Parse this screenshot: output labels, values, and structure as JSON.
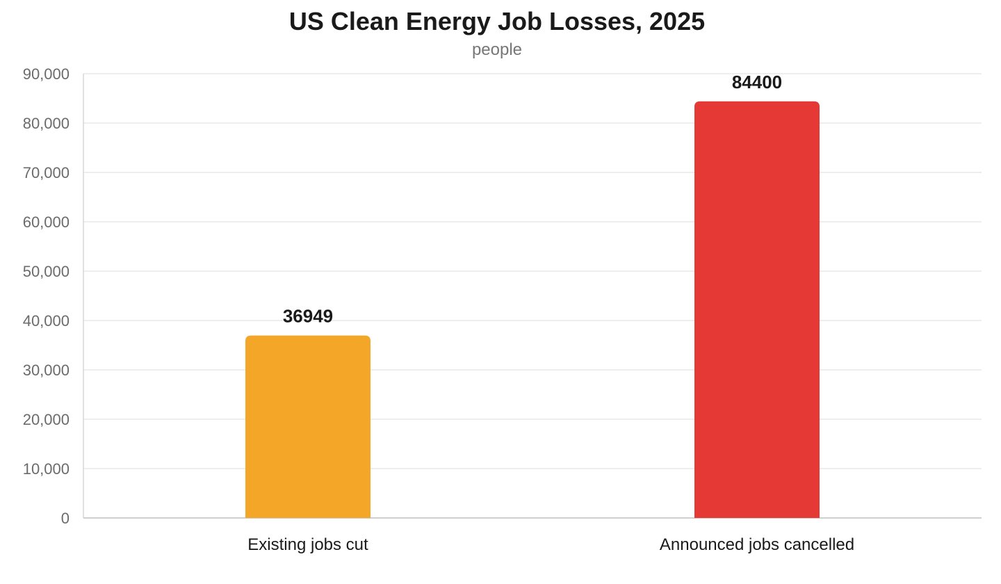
{
  "chart_data": {
    "type": "bar",
    "title": "US Clean Energy Job Losses, 2025",
    "subtitle": "people",
    "categories": [
      "Existing jobs cut",
      "Announced jobs cancelled"
    ],
    "values": [
      36949,
      84400
    ],
    "data_labels": [
      "36949",
      "84400"
    ],
    "colors": [
      "#f3a628",
      "#e53935"
    ],
    "ylim": [
      0,
      90000
    ],
    "yticks": [
      0,
      10000,
      20000,
      30000,
      40000,
      50000,
      60000,
      70000,
      80000,
      90000
    ],
    "ytick_labels": [
      "0",
      "10,000",
      "20,000",
      "30,000",
      "40,000",
      "50,000",
      "60,000",
      "70,000",
      "80,000",
      "90,000"
    ],
    "grid": true,
    "legend": "none"
  }
}
